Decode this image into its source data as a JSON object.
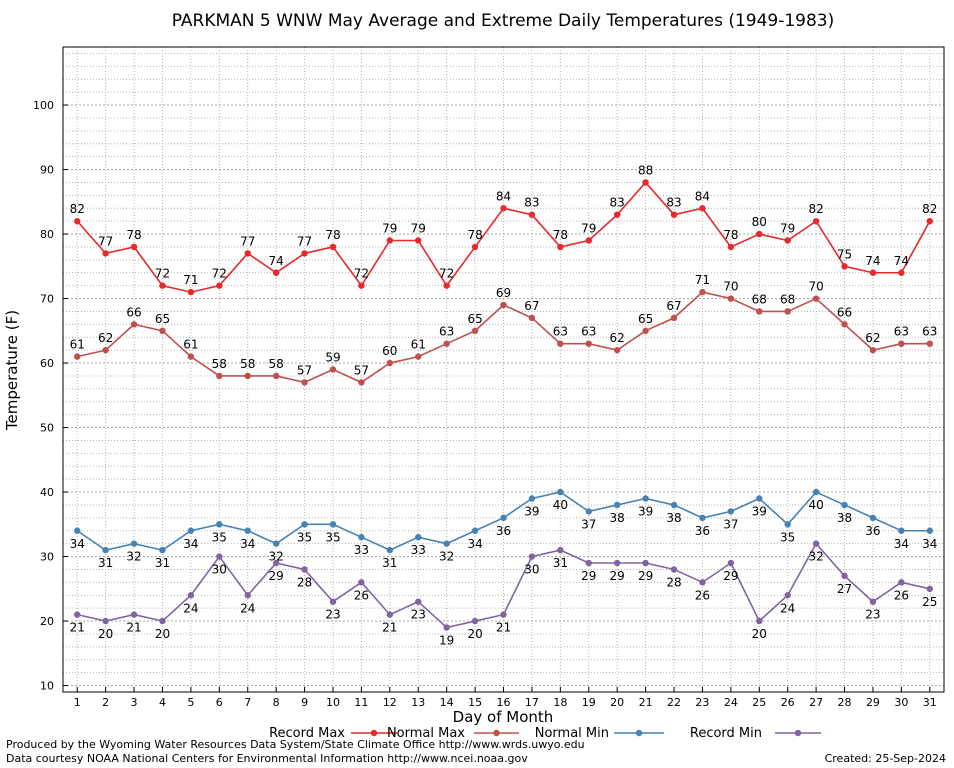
{
  "chart_data": {
    "type": "line",
    "title": "PARKMAN 5 WNW May Average and Extreme Daily Temperatures (1949-1983)",
    "xlabel": "Day of Month",
    "ylabel": "Temperature (F)",
    "xlim": [
      0.5,
      31.5
    ],
    "ylim": [
      9,
      109
    ],
    "y_ticks": [
      10,
      20,
      30,
      40,
      50,
      60,
      70,
      80,
      90,
      100
    ],
    "grid": true,
    "legend_position": "bottom",
    "categories": [
      1,
      2,
      3,
      4,
      5,
      6,
      7,
      8,
      9,
      10,
      11,
      12,
      13,
      14,
      15,
      16,
      17,
      18,
      19,
      20,
      21,
      22,
      23,
      24,
      25,
      26,
      27,
      28,
      29,
      30,
      31
    ],
    "series": [
      {
        "name": "Record Max",
        "color": "#e8282a",
        "label_position": "above",
        "values": [
          82,
          77,
          78,
          72,
          71,
          72,
          77,
          74,
          77,
          78,
          72,
          79,
          79,
          72,
          78,
          84,
          83,
          78,
          79,
          83,
          88,
          83,
          84,
          78,
          80,
          79,
          82,
          75,
          74,
          74,
          82
        ]
      },
      {
        "name": "Normal Max",
        "color": "#c0504d",
        "label_position": "above",
        "values": [
          61,
          62,
          66,
          65,
          61,
          58,
          58,
          58,
          57,
          59,
          57,
          60,
          61,
          63,
          65,
          69,
          67,
          63,
          63,
          62,
          65,
          67,
          71,
          70,
          68,
          68,
          70,
          66,
          62,
          63,
          63
        ]
      },
      {
        "name": "Normal Min",
        "color": "#4682b4",
        "label_position": "below",
        "values": [
          34,
          31,
          32,
          31,
          34,
          35,
          34,
          32,
          35,
          35,
          33,
          31,
          33,
          32,
          34,
          36,
          39,
          40,
          37,
          38,
          39,
          38,
          36,
          37,
          39,
          35,
          40,
          38,
          36,
          34,
          34
        ]
      },
      {
        "name": "Record Min",
        "color": "#8064a2",
        "label_position": "below",
        "values": [
          21,
          20,
          21,
          20,
          24,
          30,
          24,
          29,
          28,
          23,
          26,
          21,
          23,
          19,
          20,
          21,
          30,
          31,
          29,
          29,
          29,
          28,
          26,
          29,
          20,
          24,
          32,
          27,
          23,
          26,
          25
        ]
      }
    ]
  },
  "footer": {
    "producer": "Produced by the Wyoming Water Resources Data System/State Climate Office http://www.wrds.uwyo.edu",
    "source": "Data courtesy NOAA National Centers for Environmental Information http://www.ncei.noaa.gov",
    "created": "Created:  25-Sep-2024"
  }
}
